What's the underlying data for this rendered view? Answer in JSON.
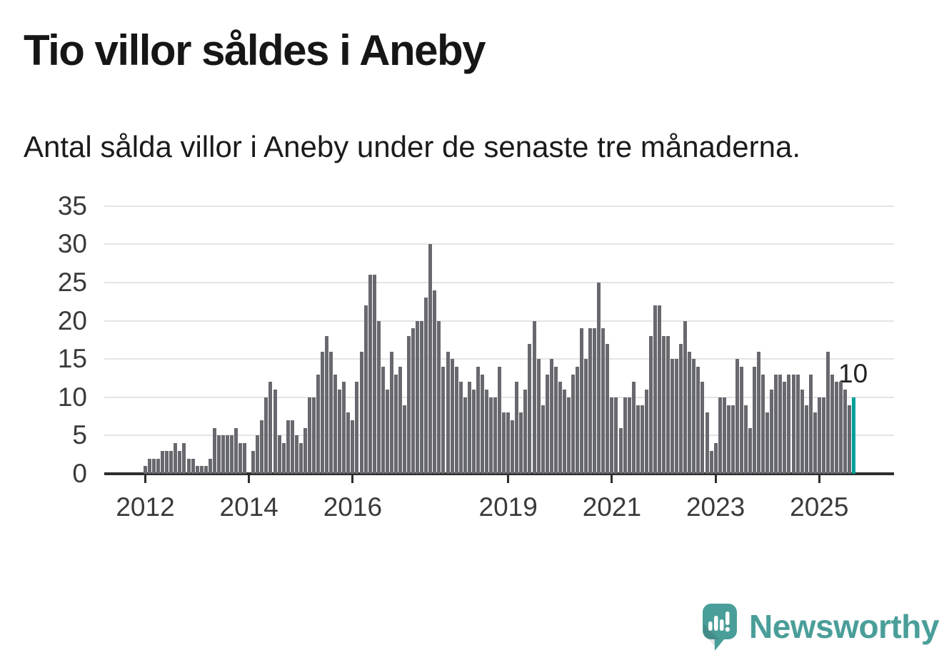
{
  "header": {
    "title": "Tio villor såldes i Aneby",
    "subtitle": "Antal sålda villor i Aneby under de senaste tre månaderna."
  },
  "logo": {
    "brand": "Newsworthy"
  },
  "colors": {
    "bar": "#68686f",
    "highlight": "#00a099",
    "brand_teal": "#4a9e99",
    "gridline": "#e4e4e4",
    "axis": "#2d2d2d",
    "text": "#161616",
    "tick_label": "#3a3a3a"
  },
  "chart_data": {
    "type": "bar",
    "title": "Tio villor såldes i Aneby",
    "subtitle": "Antal sålda villor i Aneby under de senaste tre månaderna.",
    "x_start": "2012-01",
    "x_frequency": "monthly",
    "ylabel": "",
    "xlabel": "",
    "ylim": [
      0,
      35
    ],
    "grid": true,
    "legend": "none",
    "yticks": [
      0,
      5,
      10,
      15,
      20,
      25,
      30,
      35
    ],
    "xticks": [
      {
        "label": "2012",
        "index": 0
      },
      {
        "label": "2014",
        "index": 24
      },
      {
        "label": "2016",
        "index": 48
      },
      {
        "label": "2019",
        "index": 84
      },
      {
        "label": "2021",
        "index": 108
      },
      {
        "label": "2023",
        "index": 132
      },
      {
        "label": "2025",
        "index": 156
      }
    ],
    "values": [
      1,
      2,
      2,
      2,
      3,
      3,
      3,
      4,
      3,
      4,
      2,
      2,
      1,
      1,
      1,
      2,
      6,
      5,
      5,
      5,
      5,
      6,
      4,
      4,
      0,
      3,
      5,
      7,
      10,
      12,
      11,
      5,
      4,
      7,
      7,
      5,
      4,
      6,
      10,
      10,
      13,
      16,
      18,
      16,
      13,
      11,
      12,
      8,
      7,
      12,
      16,
      22,
      26,
      26,
      20,
      14,
      11,
      16,
      13,
      14,
      9,
      18,
      19,
      20,
      20,
      23,
      30,
      24,
      20,
      14,
      16,
      15,
      14,
      12,
      10,
      12,
      11,
      14,
      13,
      11,
      10,
      10,
      14,
      8,
      8,
      7,
      12,
      8,
      11,
      17,
      20,
      15,
      9,
      13,
      15,
      14,
      12,
      11,
      10,
      13,
      14,
      19,
      15,
      19,
      19,
      25,
      19,
      17,
      10,
      10,
      6,
      10,
      10,
      12,
      9,
      9,
      11,
      18,
      22,
      22,
      18,
      18,
      15,
      15,
      17,
      20,
      16,
      15,
      14,
      12,
      8,
      3,
      4,
      10,
      10,
      9,
      9,
      15,
      14,
      9,
      6,
      14,
      16,
      13,
      8,
      11,
      13,
      13,
      12,
      13,
      13,
      13,
      11,
      9,
      13,
      8,
      10,
      10,
      16,
      13,
      12,
      12,
      11,
      9,
      10
    ],
    "highlight": {
      "index": 164,
      "value": 10,
      "label": "10",
      "color": "#00a099"
    }
  }
}
